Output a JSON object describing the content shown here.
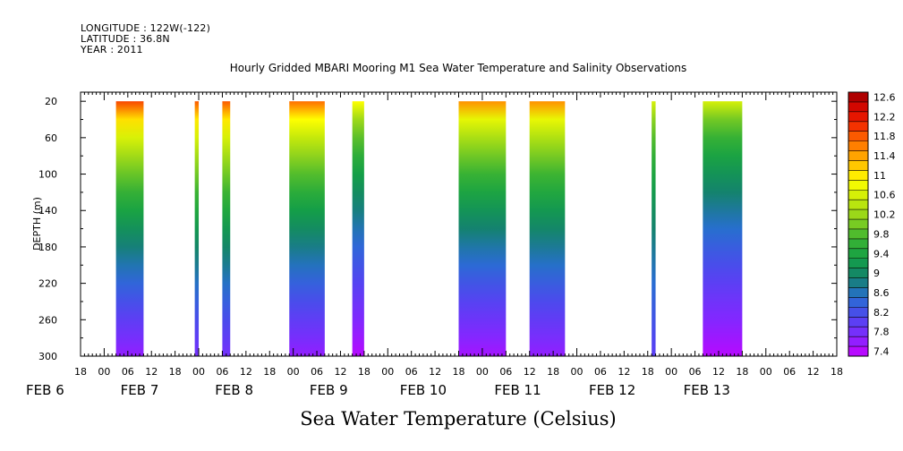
{
  "header": {
    "longitude": "LONGITUDE : 122W(-122)",
    "latitude": "LATITUDE : 36.8N",
    "year": "YEAR : 2011"
  },
  "chart_data": {
    "type": "heatmap",
    "title": "Hourly Gridded MBARI Mooring M1 Sea Water Temperature and Salinity Observations",
    "subtitle": "Sea Water Temperature (Celsius)",
    "ylabel": "DEPTH (m)",
    "y_ticks": [
      20,
      60,
      100,
      140,
      180,
      220,
      260,
      300
    ],
    "y_range": [
      10,
      300
    ],
    "x_range_hours": [
      -6,
      186
    ],
    "x_hour_ticks": [
      "18",
      "00",
      "06",
      "12",
      "18",
      "00",
      "06",
      "12",
      "18",
      "00",
      "06",
      "12",
      "18",
      "00",
      "06",
      "12",
      "18",
      "00",
      "06",
      "12",
      "18",
      "00",
      "06",
      "12",
      "18",
      "00",
      "06",
      "12",
      "18",
      "00",
      "06",
      "12",
      "18"
    ],
    "x_day_labels": [
      "FEB  6",
      "FEB  7",
      "FEB  8",
      "FEB  9",
      "FEB 10",
      "FEB 11",
      "FEB 12",
      "FEB 13"
    ],
    "colorbar": {
      "min": 7.4,
      "max": 12.8,
      "step": 0.2,
      "labels": [
        "12.6",
        "12.2",
        "11.8",
        "11.4",
        "11",
        "10.6",
        "10.2",
        "9.8",
        "9.4",
        "9",
        "8.6",
        "8.2",
        "7.8",
        "7.4"
      ]
    },
    "data_blocks": [
      {
        "start": "FEB 7 03:00",
        "end": "FEB 7 10:00",
        "surface_temp": 12.0,
        "deep_temp": 7.7
      },
      {
        "start": "FEB 7 23:00",
        "end": "FEB 8 00:00",
        "surface_temp": 11.9,
        "deep_temp": 7.9
      },
      {
        "start": "FEB 8 06:00",
        "end": "FEB 8 08:00",
        "surface_temp": 11.9,
        "deep_temp": 7.9
      },
      {
        "start": "FEB 8 23:00",
        "end": "FEB 9 08:00",
        "surface_temp": 11.8,
        "deep_temp": 7.7
      },
      {
        "start": "FEB 9 15:00",
        "end": "FEB 9 18:00",
        "surface_temp": 11.0,
        "deep_temp": 7.5
      },
      {
        "start": "FEB 10 18:00",
        "end": "FEB 11 06:00",
        "surface_temp": 11.6,
        "deep_temp": 7.6
      },
      {
        "start": "FEB 11 12:00",
        "end": "FEB 11 21:00",
        "surface_temp": 11.6,
        "deep_temp": 7.7
      },
      {
        "start": "FEB 12 19:00",
        "end": "FEB 12 20:00",
        "surface_temp": 10.7,
        "deep_temp": 8.1
      },
      {
        "start": "FEB 13 08:00",
        "end": "FEB 13 18:00",
        "surface_temp": 10.7,
        "deep_temp": 7.5
      }
    ]
  }
}
